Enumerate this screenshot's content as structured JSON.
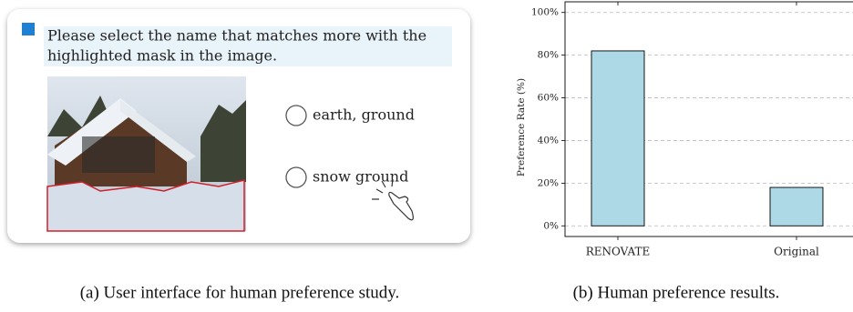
{
  "ui": {
    "question": [
      "Please select the name that matches more with the",
      "highlighted mask in the image."
    ],
    "options": [
      "earth, ground",
      "snow ground"
    ]
  },
  "chart_data": {
    "type": "bar",
    "ylabel": "Preference Rate (%)",
    "categories": [
      "RENOVATE",
      "Original"
    ],
    "values": [
      82,
      18
    ],
    "color": "#add8e6",
    "ylim": [
      -5,
      105
    ],
    "yticks": [
      {
        "value": 0,
        "label": "0%"
      },
      {
        "value": 20,
        "label": "20%"
      },
      {
        "value": 40,
        "label": "40%"
      },
      {
        "value": 60,
        "label": "60%"
      },
      {
        "value": 80,
        "label": "80%"
      },
      {
        "value": 100,
        "label": "100%"
      }
    ],
    "grid": true
  },
  "captions": [
    "(a) User interface for human preference study.",
    "(b) Human preference results."
  ]
}
